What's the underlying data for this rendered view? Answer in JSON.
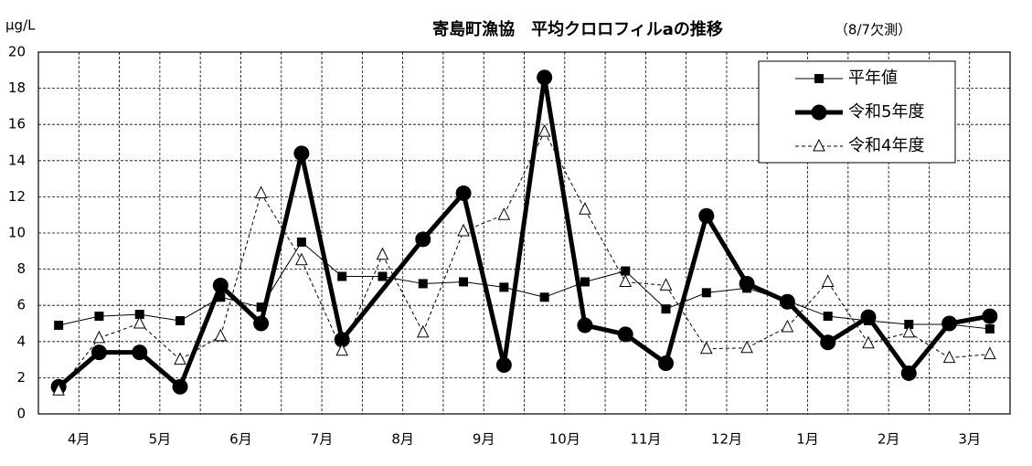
{
  "chart_data": {
    "type": "line",
    "title": "寄島町漁協　平均クロロフィルaの推移",
    "annotation": "（8/7欠測）",
    "y_label": "μg/L",
    "categories": [
      "4月",
      "5月",
      "6月",
      "7月",
      "8月",
      "9月",
      "10月",
      "11月",
      "12月",
      "1月",
      "2月",
      "3月"
    ],
    "ylim": [
      0,
      20
    ],
    "yticks": [
      0,
      2,
      4,
      6,
      8,
      10,
      12,
      14,
      16,
      18,
      20
    ],
    "grid": true,
    "legend": "upper right",
    "series": [
      {
        "name": "平年値",
        "color": "#000000",
        "marker": "square",
        "line_width": 1,
        "dash": false,
        "values": [
          [
            4.9,
            5.4
          ],
          [
            5.5,
            5.15
          ],
          [
            6.45,
            5.9
          ],
          [
            9.5,
            7.6
          ],
          [
            7.6,
            7.2
          ],
          [
            7.3,
            7.0
          ],
          [
            6.45,
            7.3
          ],
          [
            7.9,
            5.8
          ],
          [
            6.7,
            6.95
          ],
          [
            6.25,
            5.4
          ],
          [
            5.15,
            4.95
          ],
          [
            4.95,
            4.7
          ]
        ]
      },
      {
        "name": "令和5年度",
        "color": "#000000",
        "marker": "circle",
        "line_width": 5,
        "dash": false,
        "values": [
          [
            1.5,
            3.4
          ],
          [
            3.4,
            1.5
          ],
          [
            7.1,
            5.0
          ],
          [
            14.4,
            4.1
          ],
          [
            null,
            9.65
          ],
          [
            12.2,
            2.7
          ],
          [
            18.6,
            4.9
          ],
          [
            4.4,
            2.8
          ],
          [
            10.95,
            7.2
          ],
          [
            6.2,
            3.95
          ],
          [
            5.35,
            2.25
          ],
          [
            5.0,
            5.4
          ]
        ]
      },
      {
        "name": "令和4年度",
        "color": "#000000",
        "marker": "triangle",
        "line_width": 1,
        "dash": true,
        "values": [
          [
            1.3,
            4.2
          ],
          [
            5.0,
            3.0
          ],
          [
            4.3,
            12.2
          ],
          [
            8.5,
            3.5
          ],
          [
            8.8,
            4.5
          ],
          [
            10.1,
            11.0
          ],
          [
            15.6,
            11.3
          ],
          [
            7.3,
            7.1
          ],
          [
            3.6,
            3.65
          ],
          [
            4.8,
            7.3
          ],
          [
            3.9,
            4.5
          ],
          [
            3.1,
            3.3
          ]
        ]
      }
    ]
  }
}
